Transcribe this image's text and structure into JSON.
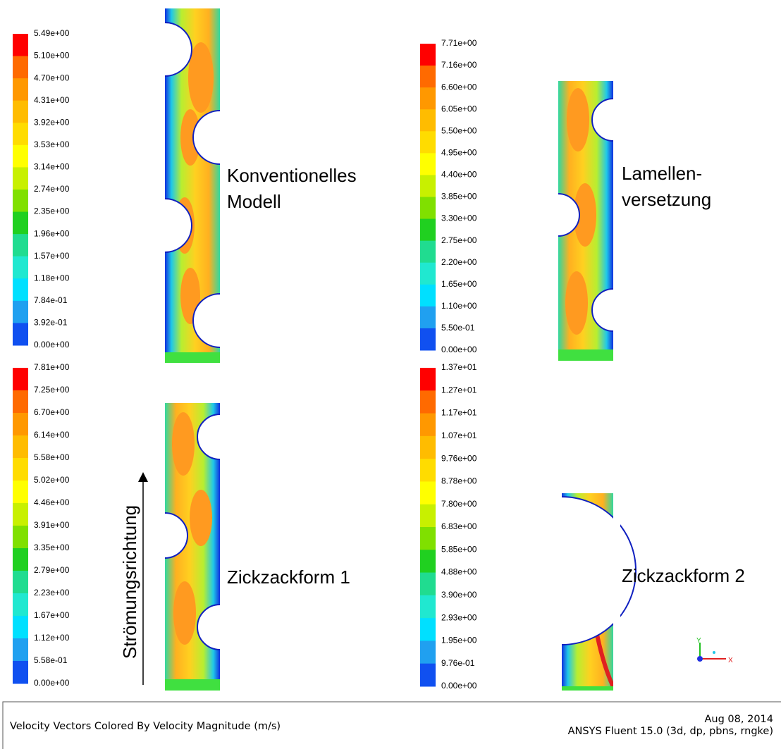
{
  "panels": [
    {
      "label": [
        "Konventionelles",
        "Modell"
      ],
      "legend": [
        "5.49e+00",
        "5.10e+00",
        "4.70e+00",
        "4.31e+00",
        "3.92e+00",
        "3.53e+00",
        "3.14e+00",
        "2.74e+00",
        "2.35e+00",
        "1.96e+00",
        "1.57e+00",
        "1.18e+00",
        "7.84e-01",
        "3.92e-01",
        "0.00e+00"
      ]
    },
    {
      "label": [
        "Lamellen-",
        "versetzung"
      ],
      "legend": [
        "7.71e+00",
        "7.16e+00",
        "6.60e+00",
        "6.05e+00",
        "5.50e+00",
        "4.95e+00",
        "4.40e+00",
        "3.85e+00",
        "3.30e+00",
        "2.75e+00",
        "2.20e+00",
        "1.65e+00",
        "1.10e+00",
        "5.50e-01",
        "0.00e+00"
      ]
    },
    {
      "label": [
        "Zickzackform 1"
      ],
      "legend": [
        "7.81e+00",
        "7.25e+00",
        "6.70e+00",
        "6.14e+00",
        "5.58e+00",
        "5.02e+00",
        "4.46e+00",
        "3.91e+00",
        "3.35e+00",
        "2.79e+00",
        "2.23e+00",
        "1.67e+00",
        "1.12e+00",
        "5.58e-01",
        "0.00e+00"
      ]
    },
    {
      "label": [
        "Zickzackform 2"
      ],
      "legend": [
        "1.37e+01",
        "1.27e+01",
        "1.17e+01",
        "1.07e+01",
        "9.76e+00",
        "8.78e+00",
        "7.80e+00",
        "6.83e+00",
        "5.85e+00",
        "4.88e+00",
        "3.90e+00",
        "2.93e+00",
        "1.95e+00",
        "9.76e-01",
        "0.00e+00"
      ]
    }
  ],
  "flow_label": "Strömungsrichtung",
  "footer": {
    "caption": "Velocity Vectors Colored By Velocity Magnitude (m/s)",
    "date": "Aug 08, 2014",
    "software": "ANSYS Fluent 15.0 (3d, dp, pbns, rngke)"
  }
}
